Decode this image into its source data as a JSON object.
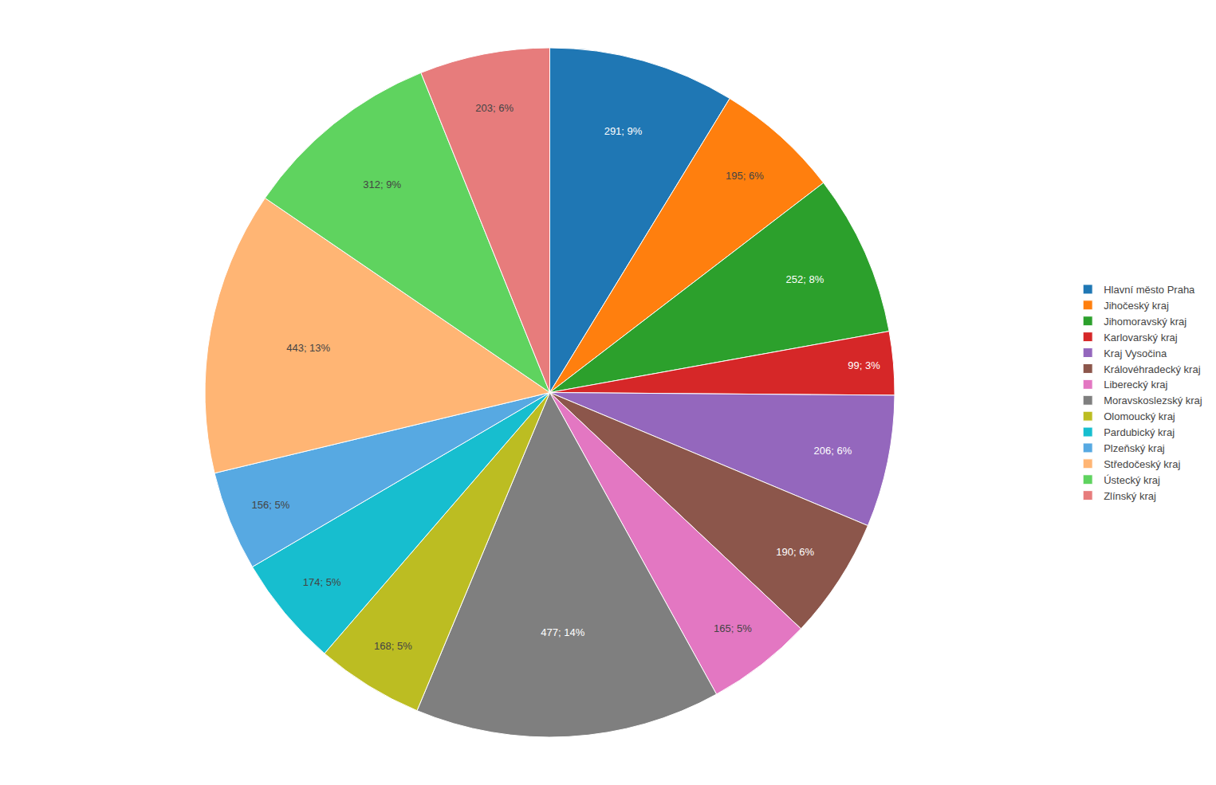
{
  "chart_data": {
    "type": "pie",
    "categories": [
      "Hlavní město Praha",
      "Jihočeský kraj",
      "Jihomoravský kraj",
      "Karlovarský kraj",
      "Kraj Vysočina",
      "Královéhradecký kraj",
      "Liberecký kraj",
      "Moravskoslezský kraj",
      "Olomoucký kraj",
      "Pardubický kraj",
      "Plzeňský kraj",
      "Středočeský kraj",
      "Ústecký kraj",
      "Zlínský kraj"
    ],
    "values": [
      291,
      195,
      252,
      99,
      206,
      190,
      165,
      477,
      168,
      174,
      156,
      443,
      312,
      203
    ],
    "value_labels": [
      "291; 9%",
      "195; 6%",
      "252; 8%",
      "99; 3%",
      "206; 6%",
      "190; 6%",
      "165; 5%",
      "477; 14%",
      "168; 5%",
      "174; 5%",
      "156; 5%",
      "443; 13%",
      "312; 9%",
      "203; 6%"
    ],
    "data_labels": true,
    "legend": "right"
  }
}
